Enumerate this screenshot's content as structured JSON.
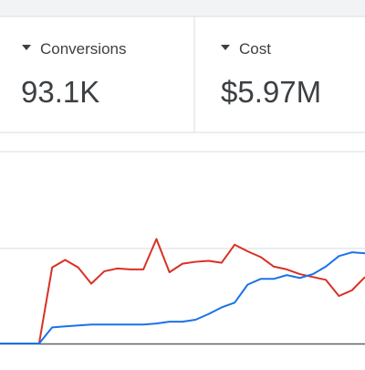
{
  "metrics": [
    {
      "label": "Conversions",
      "value": "93.1K"
    },
    {
      "label": "Cost",
      "value": "$5.97M"
    }
  ],
  "chart_data": {
    "type": "line",
    "x": [
      0,
      1,
      2,
      3,
      4,
      5,
      6,
      7,
      8,
      9,
      10,
      11,
      12,
      13,
      14,
      15,
      16,
      17,
      18,
      19,
      20,
      21,
      22,
      23,
      24,
      25,
      26,
      27,
      28
    ],
    "xlim": [
      0,
      28
    ],
    "ylim": [
      0,
      2
    ],
    "series": [
      {
        "color": "#d93025",
        "values": [
          0,
          0,
          0,
          0,
          0.8,
          0.88,
          0.8,
          0.63,
          0.76,
          0.79,
          0.78,
          0.78,
          1.1,
          0.75,
          0.84,
          0.86,
          0.87,
          0.85,
          1.04,
          0.97,
          0.91,
          0.81,
          0.78,
          0.73,
          0.7,
          0.67,
          0.5,
          0.56,
          0.7
        ]
      },
      {
        "color": "#1a73e8",
        "values": [
          0,
          0,
          0,
          0,
          0.17,
          0.18,
          0.19,
          0.2,
          0.2,
          0.2,
          0.2,
          0.2,
          0.21,
          0.23,
          0.23,
          0.25,
          0.31,
          0.38,
          0.43,
          0.62,
          0.68,
          0.68,
          0.72,
          0.69,
          0.73,
          0.81,
          0.92,
          0.96,
          0.95
        ]
      }
    ]
  }
}
